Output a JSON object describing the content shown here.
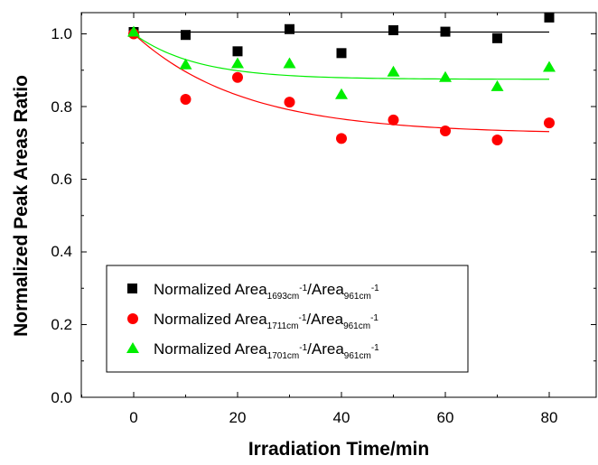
{
  "chart_data": {
    "type": "scatter",
    "xlabel": "Irradiation Time/min",
    "ylabel": "Normalized Peak Areas Ratio",
    "xlim": [
      -12.5,
      87
    ],
    "ylim": [
      0.0,
      1.06
    ],
    "xticks": [
      "0",
      "20",
      "40",
      "60",
      "80"
    ],
    "yticks": [
      "0.0",
      "0.2",
      "0.4",
      "0.6",
      "0.8",
      "1.0"
    ],
    "x": [
      0,
      10,
      20,
      30,
      40,
      50,
      60,
      70,
      80
    ],
    "series": [
      {
        "label_main": "Normalized Area",
        "label_sub1": "1693cm",
        "label_sup1": "-1",
        "label_mid": "/Area",
        "label_sub2": "961cm",
        "label_sup2": "-1",
        "marker": "square",
        "color": "#000000",
        "values": [
          1.005,
          0.997,
          0.952,
          1.013,
          0.947,
          1.01,
          1.006,
          0.988,
          1.045
        ],
        "fit": {
          "type": "constant",
          "value": 1.005
        }
      },
      {
        "label_main": "Normalized Area",
        "label_sub1": "1711cm",
        "label_sup1": "-1",
        "label_mid": "/Area",
        "label_sub2": "961cm",
        "label_sup2": "-1",
        "marker": "circle",
        "color": "#ff0000",
        "values": [
          1.0,
          0.82,
          0.88,
          0.812,
          0.712,
          0.763,
          0.733,
          0.708,
          0.755
        ],
        "fit": {
          "type": "exp_decay",
          "y0": 0.725,
          "A": 0.275,
          "t": 21
        }
      },
      {
        "label_main": "Normalized Area",
        "label_sub1": "1701cm",
        "label_sup1": "-1",
        "label_mid": "/Area",
        "label_sub2": "961cm",
        "label_sup2": "-1",
        "marker": "triangle",
        "color": "#00ee00",
        "values": [
          1.005,
          0.915,
          0.918,
          0.918,
          0.833,
          0.895,
          0.88,
          0.855,
          0.908
        ],
        "fit": {
          "type": "exp_decay",
          "y0": 0.875,
          "A": 0.125,
          "t": 12
        }
      }
    ],
    "legend_position": "lower-left"
  }
}
